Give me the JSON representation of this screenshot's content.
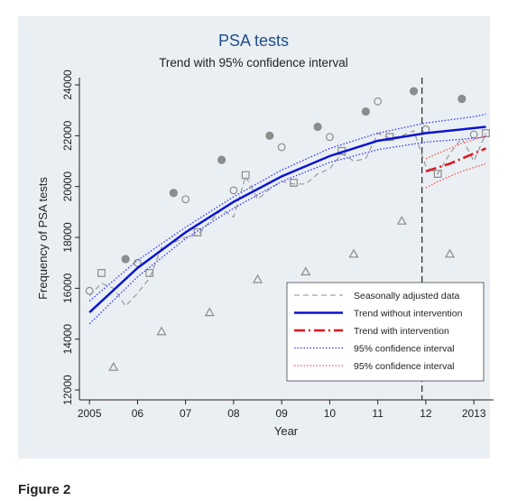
{
  "chart_data": {
    "type": "line",
    "title": "PSA tests",
    "subtitle": "Trend with 95% confidence interval",
    "x_label": "Year",
    "y_label": "Frequency of PSA tests",
    "xlim": [
      2004.79,
      2013.41
    ],
    "ylim": [
      11610,
      24284
    ],
    "xticks": [
      2005,
      {
        "value": 2006,
        "label": "06"
      },
      {
        "value": 2007,
        "label": "07"
      },
      {
        "value": 2008,
        "label": "08"
      },
      {
        "value": 2009,
        "label": "09"
      },
      {
        "value": 2010,
        "label": "10"
      },
      {
        "value": 2011,
        "label": "11"
      },
      {
        "value": 2012,
        "label": "12"
      },
      2013
    ],
    "yticks": [
      12000,
      14000,
      16000,
      18000,
      20000,
      22000,
      24000
    ],
    "intervention_x": 2011.92,
    "legend": "lower right",
    "observed": [
      {
        "marker": "circle-open",
        "color": "#8c8c8c",
        "x": [
          2005,
          2006,
          2007,
          2008,
          2009,
          2010,
          2011,
          2012,
          2013
        ],
        "values": [
          15900,
          17000,
          19500,
          19850,
          21550,
          21950,
          23350,
          22250,
          22050
        ]
      },
      {
        "marker": "square-open",
        "color": "#8c8c8c",
        "x": [
          2005.25,
          2006.25,
          2007.25,
          2008.25,
          2009.25,
          2010.25,
          2011.25,
          2012.25,
          2013.25
        ],
        "values": [
          16600,
          16600,
          18200,
          20450,
          20150,
          21400,
          21950,
          20500,
          22100
        ]
      },
      {
        "marker": "triangle-open",
        "color": "#8c8c8c",
        "x": [
          2005.5,
          2006.5,
          2007.5,
          2008.5,
          2009.5,
          2010.5,
          2011.5,
          2012.5
        ],
        "values": [
          12900,
          14300,
          15050,
          16350,
          16650,
          17350,
          18650,
          17350
        ]
      },
      {
        "marker": "circle-filled",
        "color": "#8c8c8c",
        "x": [
          2005.75,
          2006.75,
          2007.75,
          2008.75,
          2009.75,
          2010.75,
          2011.75,
          2012.75
        ],
        "values": [
          17150,
          19750,
          21050,
          22000,
          22350,
          22950,
          23750,
          23450
        ]
      }
    ],
    "series": [
      {
        "name": "Seasonally adjusted data",
        "color": "#8c8c8c",
        "dash": "6,4",
        "width": 1,
        "x": [
          2005,
          2005.25,
          2005.5,
          2005.75,
          2006,
          2006.25,
          2006.5,
          2006.75,
          2007,
          2007.25,
          2007.5,
          2007.75,
          2008,
          2008.25,
          2008.5,
          2008.75,
          2009,
          2009.25,
          2009.5,
          2009.75,
          2010,
          2010.25,
          2010.5,
          2010.75,
          2011,
          2011.25,
          2011.5,
          2011.75,
          2012,
          2012.25,
          2012.5,
          2012.75,
          2013,
          2013.25
        ],
        "values": [
          15700,
          16200,
          16000,
          15300,
          15800,
          16400,
          17600,
          17800,
          18000,
          18100,
          18600,
          19100,
          18800,
          20400,
          19500,
          19900,
          20200,
          20100,
          20100,
          20500,
          20700,
          21300,
          21000,
          21100,
          22100,
          21900,
          22000,
          22200,
          20800,
          20500,
          21300,
          21900,
          21000,
          22100
        ]
      },
      {
        "name": "Trend without intervention",
        "color": "#0a14d2",
        "dash": "",
        "width": 2.5,
        "x": [
          2005,
          2006,
          2007,
          2008,
          2009,
          2010,
          2011,
          2012,
          2013,
          2013.25
        ],
        "values": [
          15050,
          16800,
          18200,
          19400,
          20400,
          21200,
          21800,
          22100,
          22300,
          22350
        ]
      },
      {
        "name": "Trend with intervention",
        "color": "#e0141e",
        "dash": "12,4,2,4",
        "width": 2.5,
        "x": [
          2012,
          2012.25,
          2012.5,
          2012.75,
          2013,
          2013.25
        ],
        "values": [
          20600,
          20750,
          20900,
          21100,
          21300,
          21500
        ]
      },
      {
        "name": "95% confidence interval",
        "color": "#3232ff",
        "dash": "1.5,2",
        "width": 1.3,
        "x": [
          2005,
          2006,
          2007,
          2008,
          2009,
          2010,
          2011,
          2012,
          2013,
          2013.25
        ],
        "values": [
          15500,
          17100,
          18400,
          19600,
          20650,
          21500,
          22100,
          22500,
          22750,
          22850
        ],
        "lower": [
          14600,
          16450,
          17950,
          19150,
          20200,
          20950,
          21450,
          21750,
          21900,
          21950
        ]
      },
      {
        "name": "95% confidence interval",
        "color": "#ff5050",
        "dash": "1.5,2",
        "width": 1.3,
        "x": [
          2012,
          2012.25,
          2012.5,
          2012.75,
          2013,
          2013.25
        ],
        "values": [
          21100,
          21300,
          21500,
          21700,
          21850,
          22000
        ],
        "lower": [
          19950,
          20200,
          20400,
          20600,
          20750,
          20900
        ]
      }
    ]
  },
  "caption": "Figure 2"
}
